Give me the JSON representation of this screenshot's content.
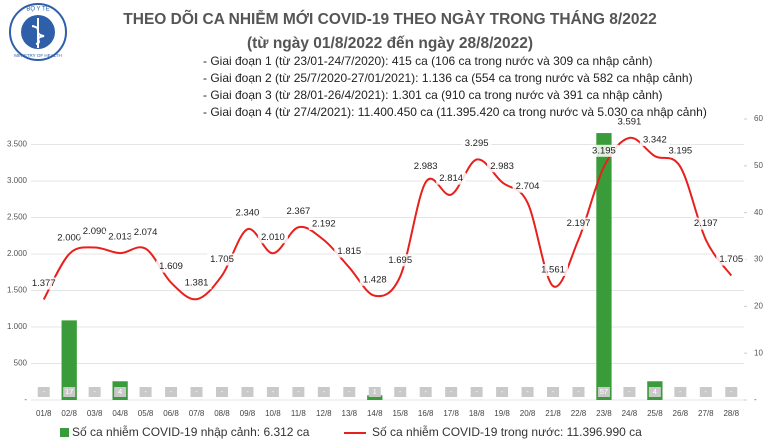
{
  "logo": {
    "top": "BỘ Y TẾ",
    "bottom": "MINISTRY OF HEALTH"
  },
  "chart_data": {
    "type": "bar-line",
    "title": "THEO DÕI CA NHIỄM MỚI COVID-19 THEO NGÀY TRONG THÁNG 8/2022",
    "subtitle": "(từ ngày 01/8/2022 đến ngày 28/8/2022)",
    "annotations": [
      "- Giai đoạn 1 (từ 23/01-24/7/2020): 415 ca (106 ca trong nước và 309 ca nhập cảnh)",
      "- Giai đoạn 2 (từ 25/7/2020-27/01/2021): 1.136 ca (554 ca trong nước và 582 ca nhập cảnh)",
      "- Giai đoạn 3 (từ 28/01-26/4/2021): 1.301 ca (910 ca trong nước và 391 ca nhập cảnh)",
      "- Giai đoạn 4 (từ 27/4/2021): 11.400.450 ca (11.395.420 ca trong nước và 5.030 ca nhập cảnh)"
    ],
    "categories": [
      "01/8",
      "02/8",
      "03/8",
      "04/8",
      "05/8",
      "06/8",
      "07/8",
      "08/8",
      "09/8",
      "10/8",
      "11/8",
      "12/8",
      "13/8",
      "14/8",
      "15/8",
      "16/8",
      "17/8",
      "18/8",
      "19/8",
      "20/8",
      "21/8",
      "22/8",
      "23/8",
      "24/8",
      "25/8",
      "26/8",
      "27/8",
      "28/8"
    ],
    "series": [
      {
        "name": "Số ca nhiễm COVID-19 nhập cảnh: 6.312 ca",
        "color": "#3a9b3a",
        "axis": "y2",
        "kind": "bar",
        "values": [
          0,
          17,
          0,
          4,
          0,
          0,
          0,
          0,
          0,
          0,
          0,
          0,
          0,
          1,
          0,
          0,
          0,
          0,
          0,
          0,
          0,
          0,
          57,
          0,
          4,
          0,
          0,
          0
        ],
        "value_labels": [
          "-",
          "17",
          "-",
          "4",
          "-",
          "-",
          "-",
          "-",
          "-",
          "-",
          "-",
          "-",
          "-",
          "1",
          "-",
          "-",
          "-",
          "-",
          "-",
          "-",
          "-",
          "-",
          "57",
          "-",
          "4",
          "-",
          "-",
          "-"
        ]
      },
      {
        "name": "Số ca nhiễm COVID-19 trong nước: 11.396.990 ca",
        "color": "#e8201c",
        "kind": "line",
        "values": [
          1377,
          2000,
          2090,
          2013,
          2074,
          1609,
          1381,
          1705,
          2340,
          2010,
          2367,
          2192,
          1815,
          1428,
          1695,
          2983,
          2814,
          3295,
          2983,
          2704,
          1561,
          2197,
          3195,
          3591,
          3342,
          3195,
          2197,
          1705
        ],
        "value_labels": [
          "1.377",
          "2.000",
          "2.090",
          "2.013",
          "2.074",
          "1.609",
          "1.381",
          "1.705",
          "2.340",
          "2.010",
          "2.367",
          "2.192",
          "1.815",
          "1.428",
          "1.695",
          "2.983",
          "2.814",
          "3.295",
          "2.983",
          "2.704",
          "1.561",
          "2.197",
          "3.195",
          "3.591",
          "3.342",
          "3.195",
          "2.197",
          "1.705"
        ]
      }
    ],
    "ylim": [
      0,
      3850
    ],
    "yticks": [
      {
        "value": 0,
        "label": "-"
      },
      500,
      {
        "value": 1000,
        "label": "1.000"
      },
      {
        "value": 1500,
        "label": "1.500"
      },
      {
        "value": 2000,
        "label": "2.000"
      },
      {
        "value": 2500,
        "label": "2.500"
      },
      {
        "value": 3000,
        "label": "3.000"
      },
      {
        "value": 3500,
        "label": "3.500"
      }
    ],
    "y2lim": [
      0,
      60
    ],
    "y2ticks": [
      {
        "value": 0,
        "label": "-"
      },
      10,
      20,
      30,
      40,
      50,
      60
    ],
    "grid": true
  }
}
